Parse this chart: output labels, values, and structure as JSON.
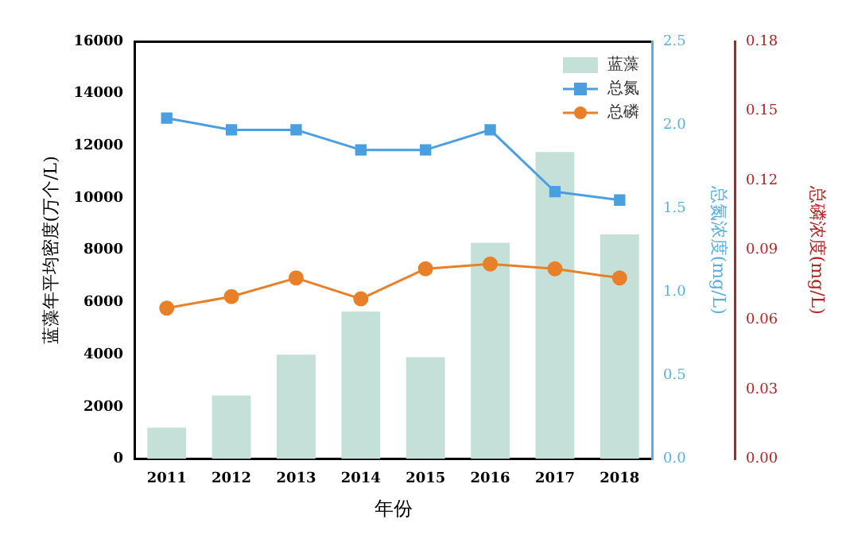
{
  "chart_data": {
    "type": "bar",
    "xlabel": "年份",
    "ylabel": "蓝藻年平均密度(万个/L)",
    "y2label": "总氮浓度(mg/L)",
    "y3label": "总磷浓度(mg/L)",
    "categories": [
      "2011",
      "2012",
      "2013",
      "2014",
      "2015",
      "2016",
      "2017",
      "2018"
    ],
    "series": [
      {
        "name": "蓝藻",
        "color": "#c5e0d8",
        "values": [
          1200,
          2430,
          4000,
          5650,
          3900,
          8280,
          11760,
          8600
        ]
      },
      {
        "name": "总氮",
        "type": "line",
        "axis": "y2",
        "marker": "square",
        "color": "#4a9fe0",
        "values": [
          2.04,
          1.97,
          1.97,
          1.85,
          1.85,
          1.97,
          1.6,
          1.55
        ]
      },
      {
        "name": "总磷",
        "type": "line",
        "axis": "y3",
        "marker": "circle",
        "color": "#e8802a",
        "values": [
          0.065,
          0.07,
          0.078,
          0.069,
          0.082,
          0.084,
          0.082,
          0.078
        ]
      }
    ],
    "ylim": [
      0,
      16000
    ],
    "yticks": [
      0,
      2000,
      4000,
      6000,
      8000,
      10000,
      12000,
      14000,
      16000
    ],
    "y2lim": [
      0,
      2.5
    ],
    "y2ticks": [
      {
        "value": 0,
        "label": "0.0"
      },
      {
        "value": 0.5,
        "label": "0.5"
      },
      {
        "value": 1,
        "label": "1.0"
      },
      {
        "value": 1.5,
        "label": "1.5"
      },
      {
        "value": 2,
        "label": "2.0"
      },
      {
        "value": 2.5,
        "label": "2.5"
      }
    ],
    "y3lim": [
      0,
      0.18
    ],
    "y3ticks": [
      {
        "value": 0,
        "label": "0.00"
      },
      {
        "value": 0.03,
        "label": "0.03"
      },
      {
        "value": 0.06,
        "label": "0.06"
      },
      {
        "value": 0.09,
        "label": "0.09"
      },
      {
        "value": 0.12,
        "label": "0.12"
      },
      {
        "value": 0.15,
        "label": "0.15"
      },
      {
        "value": 0.18,
        "label": "0.18"
      }
    ],
    "legend": "top right",
    "grid": false
  }
}
